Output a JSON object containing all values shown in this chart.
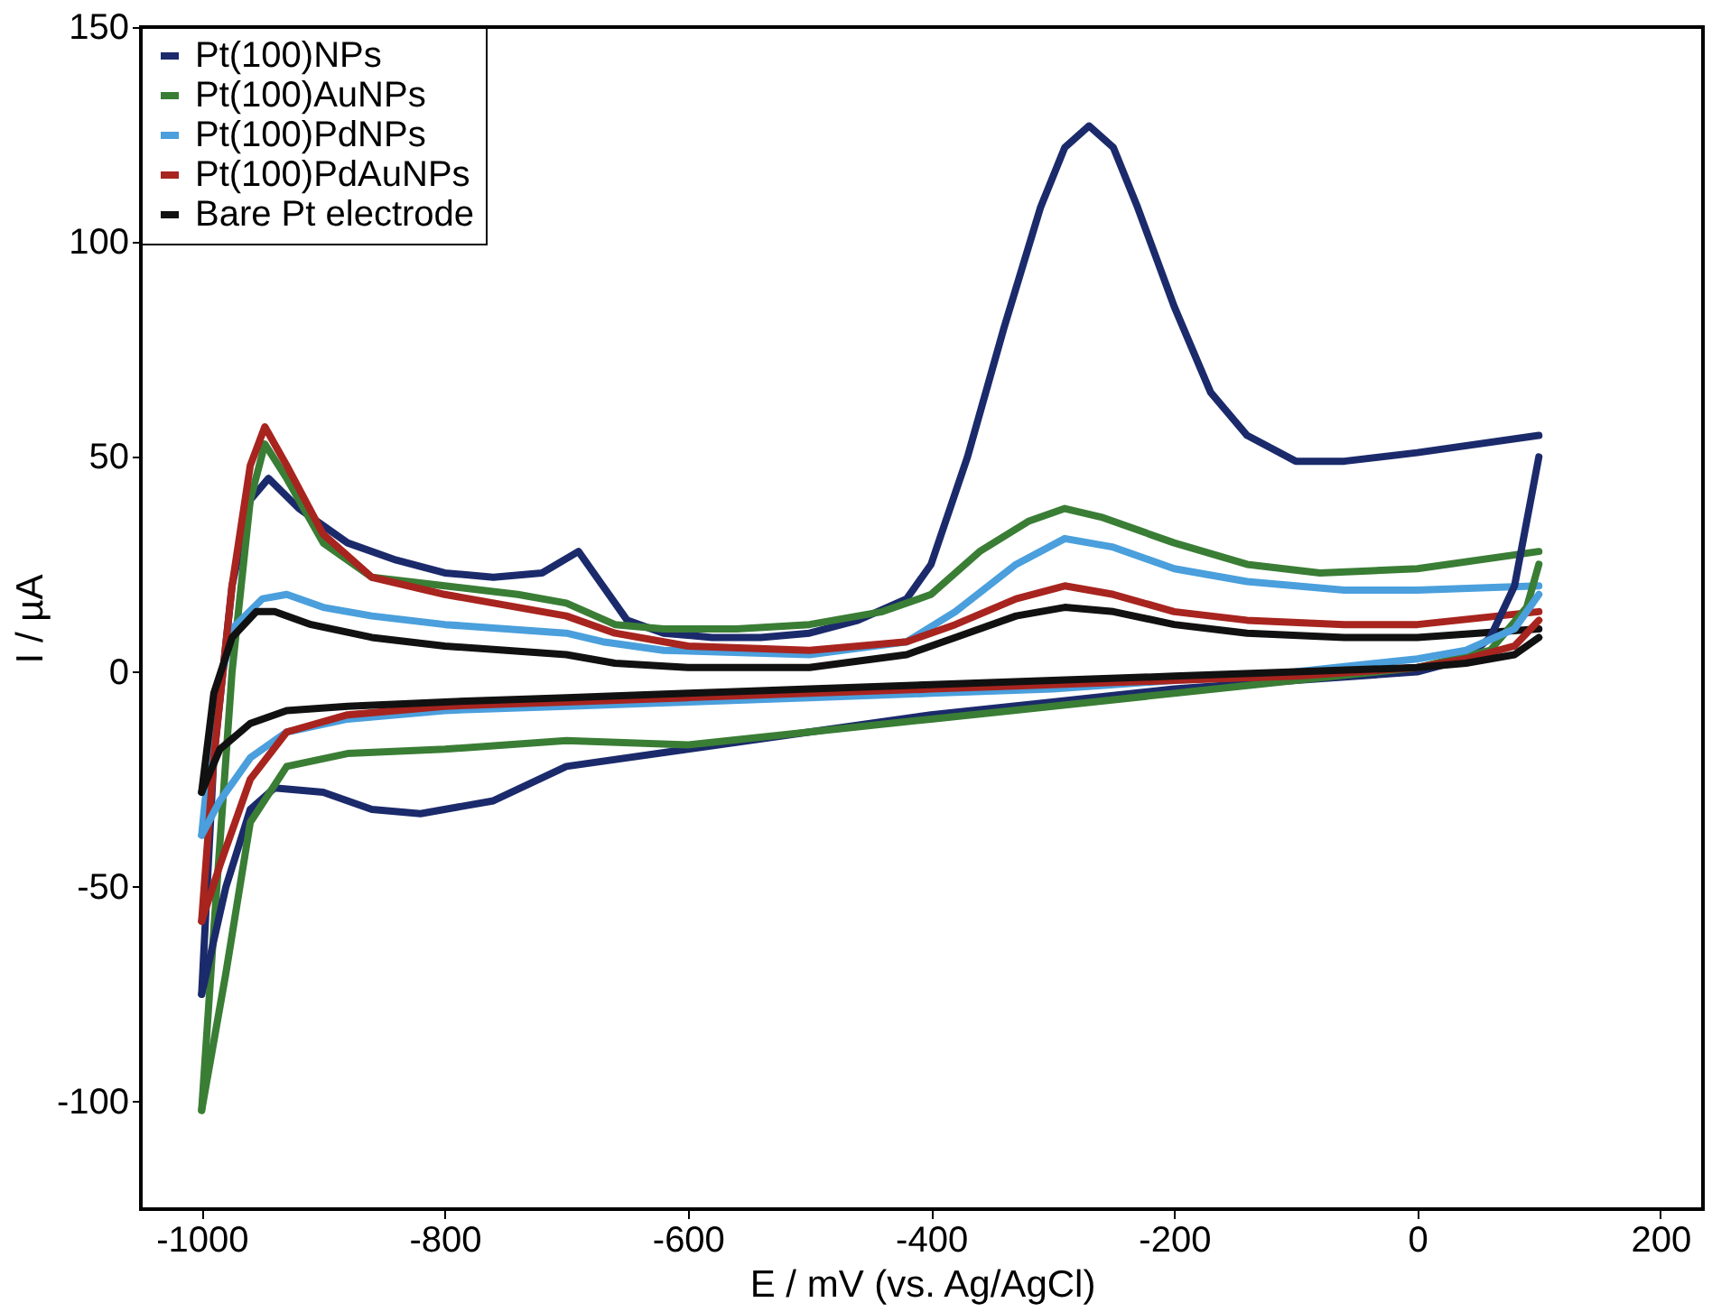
{
  "chart_data": {
    "type": "line",
    "xlabel": "E / mV (vs. Ag/AgCl)",
    "ylabel": "I / µA",
    "xlim": [
      -1050,
      235
    ],
    "ylim": [
      -125,
      150
    ],
    "xticks": [
      -1000,
      -800,
      -600,
      -400,
      -200,
      0,
      200
    ],
    "yticks": [
      -100,
      -50,
      0,
      50,
      100,
      150
    ],
    "grid": false,
    "legend": "top left",
    "marker": "none",
    "line_style": "solid",
    "series": [
      {
        "name": "Pt(100)NPs",
        "color": "#1b2a6b",
        "x": [
          -1000,
          -990,
          -975,
          -960,
          -945,
          -920,
          -880,
          -840,
          -800,
          -760,
          -720,
          -690,
          -670,
          -650,
          -620,
          -580,
          -540,
          -500,
          -460,
          -420,
          -400,
          -370,
          -340,
          -310,
          -290,
          -270,
          -250,
          -230,
          -200,
          -170,
          -140,
          -100,
          -60,
          0,
          100
        ],
        "values": [
          -75,
          -20,
          20,
          40,
          45,
          38,
          30,
          26,
          23,
          22,
          23,
          28,
          20,
          12,
          9,
          8,
          8,
          9,
          12,
          17,
          25,
          50,
          80,
          108,
          122,
          127,
          122,
          108,
          85,
          65,
          55,
          49,
          49,
          51,
          55
        ]
      },
      {
        "name": "Pt(100)AuNPs",
        "color": "#3a7d35",
        "x": [
          -1000,
          -990,
          -975,
          -960,
          -948,
          -930,
          -900,
          -860,
          -800,
          -740,
          -700,
          -660,
          -620,
          -560,
          -500,
          -440,
          -400,
          -360,
          -320,
          -290,
          -260,
          -200,
          -140,
          -80,
          0,
          100
        ],
        "values": [
          -102,
          -60,
          0,
          40,
          53,
          45,
          30,
          22,
          20,
          18,
          16,
          11,
          10,
          10,
          11,
          14,
          18,
          28,
          35,
          38,
          36,
          30,
          25,
          23,
          24,
          28
        ]
      },
      {
        "name": "Pt(100)PdNPs",
        "color": "#4a9fdc",
        "x": [
          -1000,
          -990,
          -975,
          -950,
          -930,
          -900,
          -860,
          -800,
          -700,
          -670,
          -620,
          -500,
          -420,
          -380,
          -330,
          -290,
          -250,
          -200,
          -140,
          -60,
          0,
          100
        ],
        "values": [
          -38,
          -10,
          10,
          17,
          18,
          15,
          13,
          11,
          9,
          7,
          5,
          4,
          7,
          14,
          25,
          31,
          29,
          24,
          21,
          19,
          19,
          20
        ]
      },
      {
        "name": "Pt(100)PdAuNPs",
        "color": "#a8241f",
        "x": [
          -1000,
          -990,
          -975,
          -960,
          -948,
          -930,
          -900,
          -860,
          -800,
          -700,
          -660,
          -600,
          -500,
          -420,
          -380,
          -330,
          -290,
          -250,
          -200,
          -140,
          -60,
          0,
          100
        ],
        "values": [
          -58,
          -20,
          20,
          48,
          57,
          48,
          32,
          22,
          18,
          13,
          9,
          6,
          5,
          7,
          11,
          17,
          20,
          18,
          14,
          12,
          11,
          11,
          14
        ]
      },
      {
        "name": "Bare Pt electrode",
        "color": "#111111",
        "x": [
          -1000,
          -990,
          -975,
          -955,
          -940,
          -910,
          -860,
          -800,
          -700,
          -660,
          -600,
          -500,
          -420,
          -380,
          -330,
          -290,
          -250,
          -200,
          -140,
          -60,
          0,
          100
        ],
        "values": [
          -28,
          -5,
          8,
          14,
          14,
          11,
          8,
          6,
          4,
          2,
          1,
          1,
          4,
          8,
          13,
          15,
          14,
          11,
          9,
          8,
          8,
          10
        ]
      },
      {
        "color": "#1b2a6b",
        "x": [
          100,
          80,
          60,
          40,
          0,
          -100,
          -200,
          -300,
          -400,
          -500,
          -600,
          -700,
          -760,
          -820,
          -860,
          -900,
          -940,
          -960,
          -980,
          -1000
        ],
        "values": [
          50,
          20,
          8,
          3,
          0,
          -2,
          -4,
          -7,
          -10,
          -14,
          -18,
          -22,
          -30,
          -33,
          -32,
          -28,
          -27,
          -32,
          -50,
          -75
        ]
      },
      {
        "color": "#3a7d35",
        "x": [
          100,
          90,
          60,
          0,
          -100,
          -200,
          -300,
          -400,
          -500,
          -600,
          -700,
          -800,
          -880,
          -930,
          -960,
          -980,
          -1000
        ],
        "values": [
          25,
          15,
          5,
          1,
          -2,
          -5,
          -8,
          -11,
          -14,
          -17,
          -16,
          -18,
          -19,
          -22,
          -35,
          -70,
          -102
        ]
      },
      {
        "color": "#4a9fdc",
        "x": [
          100,
          80,
          40,
          0,
          -100,
          -200,
          -300,
          -400,
          -500,
          -600,
          -700,
          -800,
          -880,
          -930,
          -960,
          -985,
          -1000
        ],
        "values": [
          18,
          10,
          5,
          3,
          0,
          -2,
          -4,
          -5,
          -6,
          -7,
          -8,
          -9,
          -11,
          -14,
          -20,
          -30,
          -38
        ]
      },
      {
        "color": "#a8241f",
        "x": [
          100,
          80,
          40,
          0,
          -100,
          -200,
          -300,
          -400,
          -500,
          -600,
          -700,
          -800,
          -880,
          -930,
          -960,
          -985,
          -1000
        ],
        "values": [
          12,
          6,
          3,
          1,
          -1,
          -2,
          -3,
          -4,
          -5,
          -6,
          -7,
          -8,
          -10,
          -14,
          -25,
          -45,
          -58
        ]
      },
      {
        "color": "#111111",
        "x": [
          100,
          80,
          40,
          0,
          -100,
          -200,
          -300,
          -400,
          -500,
          -600,
          -700,
          -800,
          -880,
          -930,
          -960,
          -985,
          -1000
        ],
        "values": [
          8,
          4,
          2,
          1,
          0,
          -1,
          -2,
          -3,
          -4,
          -5,
          -6,
          -7,
          -8,
          -9,
          -12,
          -18,
          -28
        ]
      }
    ]
  }
}
